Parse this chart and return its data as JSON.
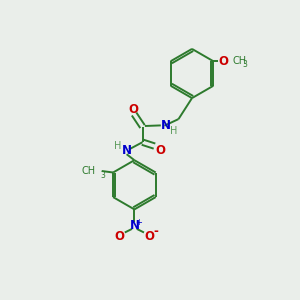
{
  "background_color": "#eaeeea",
  "bond_color": "#2d7a2d",
  "atom_colors": {
    "O": "#cc0000",
    "N": "#0000cc",
    "C": "#2d7a2d",
    "H": "#5a9a5a"
  },
  "figsize": [
    3.0,
    3.0
  ],
  "dpi": 100,
  "lw": 1.4,
  "fs": 8.5,
  "fs_small": 7.0
}
